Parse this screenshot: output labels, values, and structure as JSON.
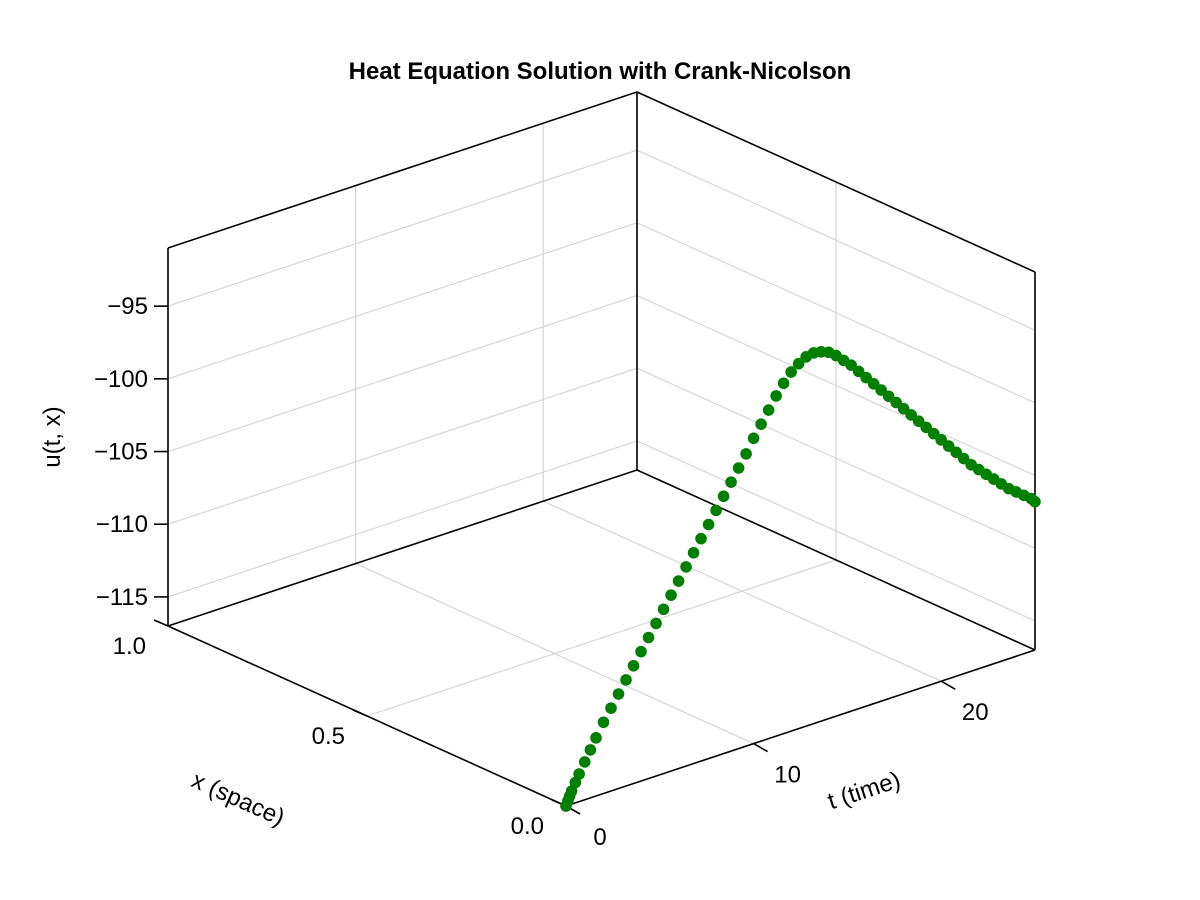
{
  "chart_data": {
    "type": "scatter",
    "projection": "3d",
    "title": "Heat Equation Solution with Crank-Nicolson",
    "xlabel": "t (time)",
    "ylabel": "x (space)",
    "zlabel": "u(t, x)",
    "t_range": [
      0,
      25
    ],
    "x_range": [
      0,
      1
    ],
    "u_range": [
      -117,
      -91
    ],
    "grid": true,
    "legend": "none",
    "marker_color": "#007f00",
    "t_ticks": [
      {
        "value": 0,
        "label": "0"
      },
      {
        "value": 10,
        "label": "10"
      },
      {
        "value": 20,
        "label": "20"
      }
    ],
    "x_ticks": [
      {
        "value": 0.0,
        "label": "0.0"
      },
      {
        "value": 0.5,
        "label": "0.5"
      },
      {
        "value": 1.0,
        "label": "1.0"
      }
    ],
    "u_ticks": [
      {
        "value": -95,
        "label": "−95"
      },
      {
        "value": -100,
        "label": "−100"
      },
      {
        "value": -105,
        "label": "−105"
      },
      {
        "value": -110,
        "label": "−110"
      },
      {
        "value": -115,
        "label": "−115"
      }
    ],
    "series": [
      {
        "t": [
          0,
          0.1,
          0.2,
          0.3,
          0.5,
          0.7,
          1.0,
          1.3,
          1.6,
          2.0,
          2.4,
          2.8,
          3.2,
          3.6,
          4.0,
          4.4,
          4.8,
          5.2,
          5.6,
          6.0,
          6.4,
          6.8,
          7.2,
          7.6,
          8.0,
          8.4,
          8.8,
          9.2,
          9.6,
          10.0,
          10.4,
          10.8,
          11.2,
          11.6,
          12.0,
          12.4,
          12.8,
          13.2,
          13.6,
          14.0,
          14.4,
          14.8,
          15.2,
          15.6,
          16.0,
          16.4,
          16.8,
          17.2,
          17.6,
          18.0,
          18.4,
          18.8,
          19.2,
          19.6,
          20.0,
          20.4,
          20.8,
          21.2,
          21.6,
          22.0,
          22.4,
          22.8,
          23.2,
          23.6,
          24.0,
          24.4,
          24.8,
          25.0
        ],
        "x": [
          0.0,
          0.0,
          0.0,
          0.0,
          0.0,
          0.0,
          0.0,
          0.0,
          0.0,
          0.0,
          0.0,
          0.0,
          0.0,
          0.0,
          0.0,
          0.0,
          0.0,
          0.0,
          0.0,
          0.0,
          0.0,
          0.0,
          0.0,
          0.0,
          0.0,
          0.0,
          0.0,
          0.0,
          0.0,
          0.0,
          0.0,
          0.0,
          0.0,
          0.0,
          0.0,
          0.0,
          0.0,
          0.0,
          0.0,
          0.0,
          0.0,
          0.0,
          0.0,
          0.0,
          0.0,
          0.0,
          0.0,
          0.0,
          0.0,
          0.0,
          0.0,
          0.0,
          0.0,
          0.0,
          0.0,
          0.0,
          0.0,
          0.0,
          0.0,
          0.0,
          0.0,
          0.0,
          0.0,
          0.0,
          0.0,
          0.0,
          0.0,
          0.0
        ],
        "u": [
          -117.0,
          -116.7,
          -116.4,
          -116.1,
          -115.6,
          -115.1,
          -114.4,
          -113.7,
          -113.0,
          -112.1,
          -111.3,
          -110.5,
          -109.7,
          -108.9,
          -108.1,
          -107.3,
          -106.5,
          -105.7,
          -104.9,
          -104.1,
          -103.3,
          -102.5,
          -101.7,
          -100.9,
          -100.1,
          -99.3,
          -98.5,
          -97.7,
          -96.9,
          -96.0,
          -95.2,
          -94.4,
          -93.6,
          -92.9,
          -92.3,
          -91.9,
          -91.6,
          -91.5,
          -91.6,
          -91.8,
          -92.2,
          -92.7,
          -93.2,
          -93.8,
          -94.4,
          -95.0,
          -95.6,
          -96.2,
          -96.8,
          -97.4,
          -98.0,
          -98.6,
          -99.2,
          -99.8,
          -100.4,
          -101.0,
          -101.6,
          -102.2,
          -102.8,
          -103.3,
          -103.8,
          -104.3,
          -104.8,
          -105.3,
          -105.7,
          -106.1,
          -106.5,
          -106.8
        ]
      }
    ]
  }
}
